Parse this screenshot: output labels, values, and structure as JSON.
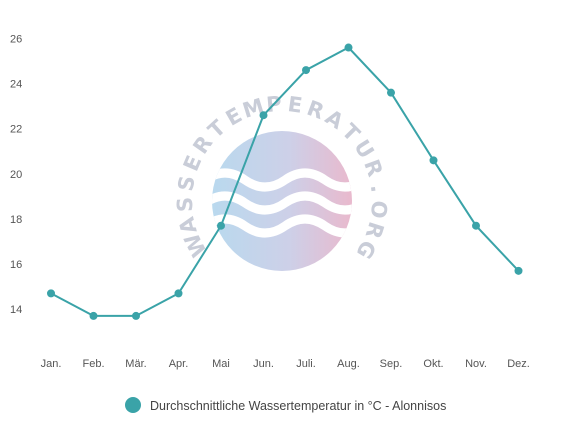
{
  "watermark": {
    "text": "WASSERTEMPERATUR.ORG"
  },
  "chart_data": {
    "type": "line",
    "categories": [
      "Jan.",
      "Feb.",
      "Mär.",
      "Apr.",
      "Mai",
      "Jun.",
      "Juli.",
      "Aug.",
      "Sep.",
      "Okt.",
      "Nov.",
      "Dez."
    ],
    "series": [
      {
        "name": "Durchschnittliche Wassertemperatur in °C - Alonnisos",
        "values": [
          14.7,
          13.7,
          13.7,
          14.7,
          17.7,
          22.6,
          24.6,
          25.6,
          23.6,
          20.6,
          17.7,
          15.7
        ],
        "color": "#3aa3a8"
      }
    ],
    "yticks": [
      14,
      16,
      18,
      20,
      22,
      24,
      26
    ],
    "ylim": [
      12.5,
      26.6
    ],
    "grid": false,
    "legend": "bottom-center",
    "title": "",
    "xlabel": "",
    "ylabel": ""
  }
}
